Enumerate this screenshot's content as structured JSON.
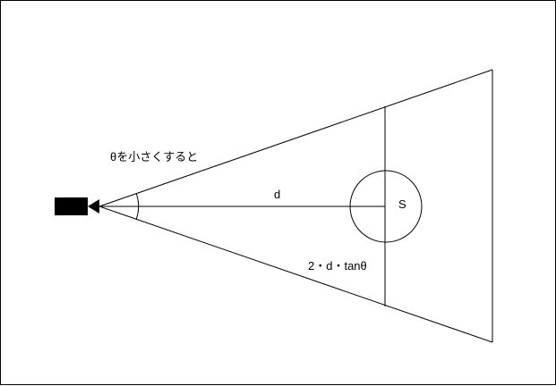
{
  "diagram": {
    "labels": {
      "theta_note": "θを小さくすると",
      "distance": "d",
      "object": "S",
      "width_formula": "2・d・tanθ"
    },
    "colors": {
      "stroke": "#000000",
      "background": "#ffffff",
      "camera": "#000000"
    }
  }
}
